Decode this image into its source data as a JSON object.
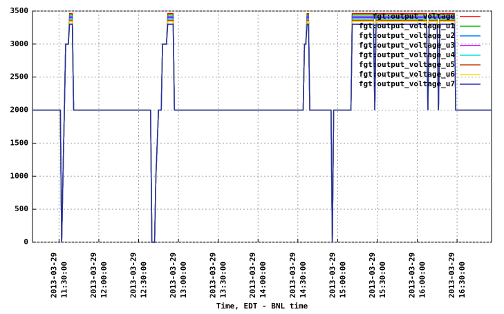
{
  "chart_data": {
    "type": "line",
    "x_label": "Time, EDT - BNL time",
    "xlim": [
      "2013-03-29 11:10:00",
      "2013-03-29 16:56:00"
    ],
    "xticks": [
      "2013-03-29 11:30:00",
      "2013-03-29 12:00:00",
      "2013-03-29 12:30:00",
      "2013-03-29 13:00:00",
      "2013-03-29 13:30:00",
      "2013-03-29 14:00:00",
      "2013-03-29 14:30:00",
      "2013-03-29 15:00:00",
      "2013-03-29 15:30:00",
      "2013-03-29 16:00:00",
      "2013-03-29 16:30:00"
    ],
    "ylim": [
      0,
      3500
    ],
    "yticks": [
      0,
      500,
      1000,
      1500,
      2000,
      2500,
      3000,
      3500
    ],
    "grid": true,
    "legend": "top-right",
    "x": [
      "2013-03-29 11:10:00",
      "2013-03-29 11:31:00",
      "2013-03-29 11:32:00",
      "2013-03-29 11:33:00",
      "2013-03-29 11:34:00",
      "2013-03-29 11:35:00",
      "2013-03-29 11:37:00",
      "2013-03-29 11:38:00",
      "2013-03-29 11:40:00",
      "2013-03-29 11:41:00",
      "2013-03-29 12:39:00",
      "2013-03-29 12:40:00",
      "2013-03-29 12:42:00",
      "2013-03-29 12:43:00",
      "2013-03-29 12:45:00",
      "2013-03-29 12:47:00",
      "2013-03-29 12:48:00",
      "2013-03-29 12:51:00",
      "2013-03-29 12:52:00",
      "2013-03-29 12:56:00",
      "2013-03-29 12:57:00",
      "2013-03-29 14:34:00",
      "2013-03-29 14:35:00",
      "2013-03-29 14:36:00",
      "2013-03-29 14:37:00",
      "2013-03-29 14:38:00",
      "2013-03-29 14:39:00",
      "2013-03-29 14:55:00",
      "2013-03-29 14:56:00",
      "2013-03-29 14:57:00",
      "2013-03-29 15:10:00",
      "2013-03-29 15:11:00",
      "2013-03-29 15:27:00",
      "2013-03-29 15:28:00",
      "2013-03-29 15:29:00",
      "2013-03-29 16:07:00",
      "2013-03-29 16:08:00",
      "2013-03-29 16:09:00",
      "2013-03-29 16:15:00",
      "2013-03-29 16:16:00",
      "2013-03-29 16:17:00",
      "2013-03-29 16:28:00",
      "2013-03-29 16:29:00",
      "2013-03-29 16:56:00"
    ],
    "series": [
      {
        "name": "fgt:output_voltage",
        "color": "#ff0000",
        "values": [
          2000,
          2000,
          0,
          1000,
          2000,
          3000,
          3000,
          3460,
          3460,
          2000,
          2000,
          0,
          0,
          1000,
          2000,
          2000,
          3000,
          3000,
          3460,
          3460,
          2000,
          2000,
          3000,
          3000,
          3460,
          3460,
          2000,
          2000,
          0,
          2000,
          2000,
          3460,
          3460,
          2000,
          3460,
          3460,
          2000,
          3460,
          3460,
          2000,
          3460,
          3460,
          2000,
          2000
        ]
      },
      {
        "name": "fgt:output_voltage_u1",
        "color": "#00c000",
        "values": [
          2000,
          2000,
          0,
          1000,
          2000,
          3000,
          3000,
          3440,
          3440,
          2000,
          2000,
          0,
          0,
          1000,
          2000,
          2000,
          3000,
          3000,
          3440,
          3440,
          2000,
          2000,
          3000,
          3000,
          3440,
          3440,
          2000,
          2000,
          0,
          2000,
          2000,
          3440,
          3440,
          2000,
          3440,
          3440,
          2000,
          3440,
          3440,
          2000,
          3440,
          3440,
          2000,
          2000
        ]
      },
      {
        "name": "fgt:output_voltage_u2",
        "color": "#0080ff",
        "values": [
          2000,
          2000,
          0,
          1000,
          2000,
          3000,
          3000,
          3420,
          3420,
          2000,
          2000,
          0,
          0,
          1000,
          2000,
          2000,
          3000,
          3000,
          3420,
          3420,
          2000,
          2000,
          3000,
          3000,
          3420,
          3420,
          2000,
          2000,
          0,
          2000,
          2000,
          3420,
          3420,
          2000,
          3420,
          3420,
          2000,
          3420,
          3420,
          2000,
          3420,
          3420,
          2000,
          2000
        ]
      },
      {
        "name": "fgt:output_voltage_u3",
        "color": "#c000ff",
        "values": [
          2000,
          2000,
          0,
          1000,
          2000,
          3000,
          3000,
          3400,
          3400,
          2000,
          2000,
          0,
          0,
          1000,
          2000,
          2000,
          3000,
          3000,
          3400,
          3400,
          2000,
          2000,
          3000,
          3000,
          3400,
          3400,
          2000,
          2000,
          0,
          2000,
          2000,
          3400,
          3400,
          2000,
          3400,
          3400,
          2000,
          3400,
          3400,
          2000,
          3400,
          3400,
          2000,
          2000
        ]
      },
      {
        "name": "fgt:output_voltage_u4",
        "color": "#00e0e0",
        "values": [
          2000,
          2000,
          0,
          1000,
          2000,
          3000,
          3000,
          3380,
          3380,
          2000,
          2000,
          0,
          0,
          1000,
          2000,
          2000,
          3000,
          3000,
          3380,
          3380,
          2000,
          2000,
          3000,
          3000,
          3380,
          3380,
          2000,
          2000,
          0,
          2000,
          2000,
          3380,
          3380,
          2000,
          3380,
          3380,
          2000,
          3380,
          3380,
          2000,
          3380,
          3380,
          2000,
          2000
        ]
      },
      {
        "name": "fgt:output_voltage_u5",
        "color": "#c04000",
        "values": [
          2000,
          2000,
          0,
          1000,
          2000,
          3000,
          3000,
          3360,
          3360,
          2000,
          2000,
          0,
          0,
          1000,
          2000,
          2000,
          3000,
          3000,
          3360,
          3360,
          2000,
          2000,
          3000,
          3000,
          3360,
          3360,
          2000,
          2000,
          0,
          2000,
          2000,
          3360,
          3360,
          2000,
          3360,
          3360,
          2000,
          3360,
          3360,
          2000,
          3360,
          3360,
          2000,
          2000
        ]
      },
      {
        "name": "fgt:output_voltage_u6",
        "color": "#f0e000",
        "values": [
          2000,
          2000,
          0,
          1000,
          2000,
          3000,
          3000,
          3340,
          3340,
          2000,
          2000,
          0,
          0,
          1000,
          2000,
          2000,
          3000,
          3000,
          3340,
          3340,
          2000,
          2000,
          3000,
          3000,
          3340,
          3340,
          2000,
          2000,
          0,
          2000,
          2000,
          3340,
          3340,
          2000,
          3340,
          3340,
          2000,
          3340,
          3340,
          2000,
          3340,
          3340,
          2000,
          2000
        ]
      },
      {
        "name": "fgt:output_voltage_u7",
        "color": "#2030b0",
        "values": [
          2000,
          2000,
          0,
          1000,
          2000,
          3000,
          3000,
          3300,
          3300,
          2000,
          2000,
          0,
          0,
          1000,
          2000,
          2000,
          3000,
          3000,
          3300,
          3300,
          2000,
          2000,
          3000,
          3000,
          3300,
          3300,
          2000,
          2000,
          0,
          2000,
          2000,
          3300,
          3300,
          2000,
          3300,
          3300,
          2000,
          3300,
          3300,
          2000,
          3300,
          3300,
          2000,
          2000
        ]
      }
    ]
  }
}
